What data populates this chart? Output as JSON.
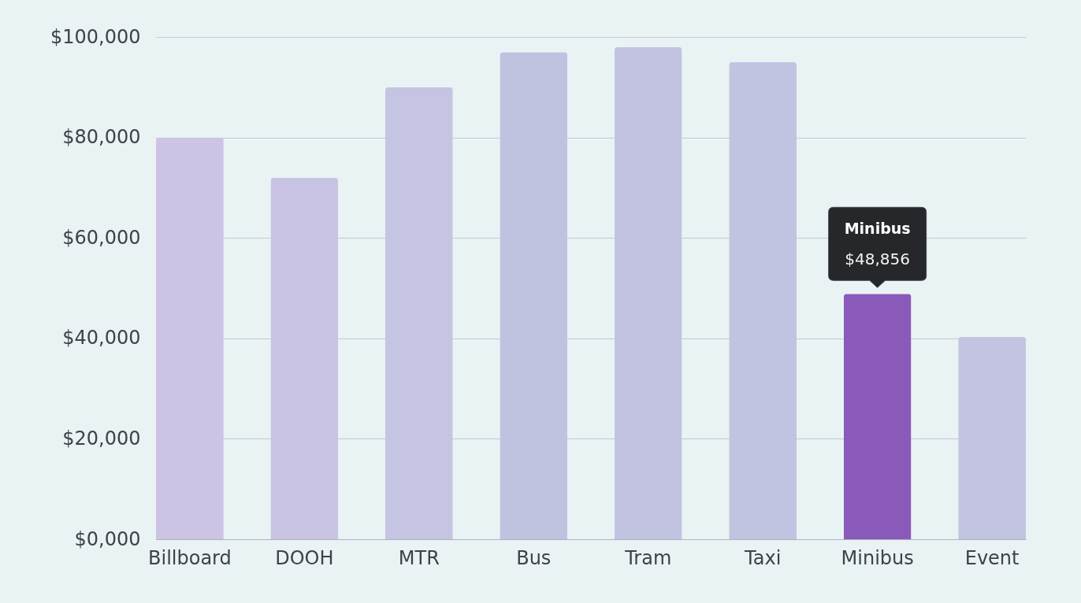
{
  "chart_data": {
    "type": "bar",
    "categories": [
      "Billboard",
      "DOOH",
      "MTR",
      "Bus",
      "Tram",
      "Taxi",
      "Minibus",
      "Event"
    ],
    "values": [
      80000,
      72000,
      90000,
      97000,
      98000,
      95000,
      48856,
      40300
    ],
    "colors": [
      "#cdc3e4",
      "#c9c3e3",
      "#c5c4e2",
      "#c0c3e0",
      "#c2c3e1",
      "#c1c4e1",
      "#8a5abb",
      "#c2c4e1"
    ],
    "ylim": [
      0,
      100000
    ],
    "yticks": [
      {
        "value": 0,
        "label": "$0,000"
      },
      {
        "value": 20000,
        "label": "$20,000"
      },
      {
        "value": 40000,
        "label": "$40,000"
      },
      {
        "value": 60000,
        "label": "$60,000"
      },
      {
        "value": 80000,
        "label": "$80,000"
      },
      {
        "value": 100000,
        "label": "$100,000"
      }
    ],
    "grid": "y",
    "value_labels": [
      null,
      null,
      null,
      null,
      null,
      null,
      "$48,856",
      null
    ],
    "annotations": [
      "Minibus"
    ]
  }
}
